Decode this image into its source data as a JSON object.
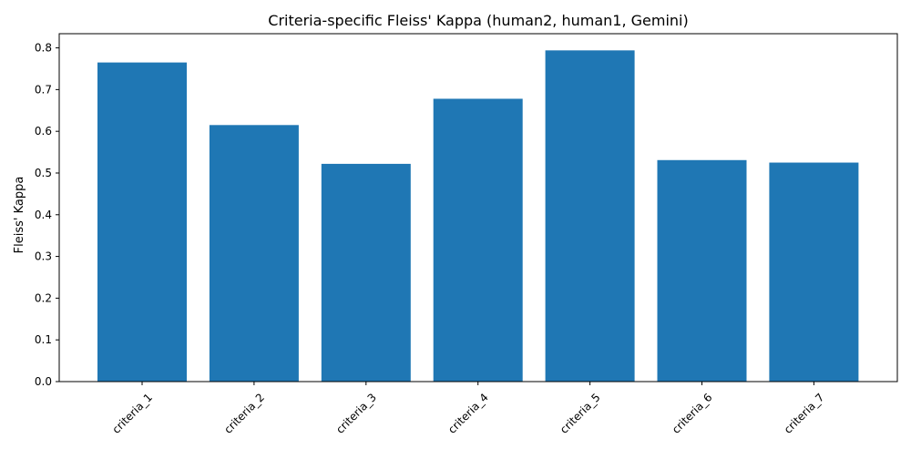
{
  "chart_data": {
    "type": "bar",
    "title": "Criteria-specific Fleiss' Kappa (human2, human1, Gemini)",
    "xlabel": "",
    "ylabel": "Fleiss' Kappa",
    "categories": [
      "criteria_1",
      "criteria_2",
      "criteria_3",
      "criteria_4",
      "criteria_5",
      "criteria_6",
      "criteria_7"
    ],
    "values": [
      0.765,
      0.615,
      0.522,
      0.678,
      0.794,
      0.531,
      0.525
    ],
    "ylim": [
      0,
      0.834
    ],
    "yticks": [
      "0.0",
      "0.1",
      "0.2",
      "0.3",
      "0.4",
      "0.5",
      "0.6",
      "0.7",
      "0.8"
    ],
    "grid": false,
    "legend": "none",
    "colors": {
      "bar": "#1f77b4",
      "axis": "#000000",
      "background": "#ffffff"
    }
  }
}
